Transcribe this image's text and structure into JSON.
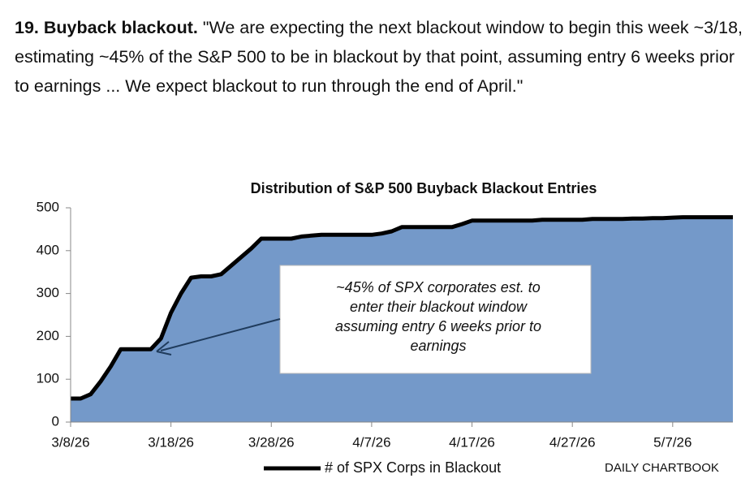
{
  "text": {
    "heading": "19. Buyback blackout.",
    "body": "\"We are expecting the next blackout window to begin this week ~3/18, estimating ~45% of the S&P 500 to be in blackout by that point, assuming entry 6 weeks prior to earnings ... We expect blackout to run through the end of April.\""
  },
  "chart_data": {
    "type": "area",
    "title": "Distribution of S&P 500 Buyback Blackout Entries",
    "x": [
      "3/8/26",
      "3/9/26",
      "3/10/26",
      "3/11/26",
      "3/12/26",
      "3/13/26",
      "3/14/26",
      "3/15/26",
      "3/16/26",
      "3/17/26",
      "3/18/26",
      "3/19/26",
      "3/20/26",
      "3/21/26",
      "3/22/26",
      "3/23/26",
      "3/24/26",
      "3/25/26",
      "3/26/26",
      "3/27/26",
      "3/28/26",
      "3/29/26",
      "3/30/26",
      "3/31/26",
      "4/1/26",
      "4/2/26",
      "4/3/26",
      "4/4/26",
      "4/5/26",
      "4/6/26",
      "4/7/26",
      "4/8/26",
      "4/9/26",
      "4/10/26",
      "4/11/26",
      "4/12/26",
      "4/13/26",
      "4/14/26",
      "4/15/26",
      "4/16/26",
      "4/17/26",
      "4/18/26",
      "4/19/26",
      "4/20/26",
      "4/21/26",
      "4/22/26",
      "4/23/26",
      "4/24/26",
      "4/25/26",
      "4/26/26",
      "4/27/26",
      "4/28/26",
      "4/29/26",
      "4/30/26",
      "5/1/26",
      "5/2/26",
      "5/3/26",
      "5/4/26",
      "5/5/26",
      "5/6/26",
      "5/7/26",
      "5/8/26",
      "5/9/26",
      "5/10/26",
      "5/11/26",
      "5/12/26",
      "5/13/26"
    ],
    "series": [
      {
        "name": "# of SPX Corps in Blackout",
        "color": "#000000",
        "fill": "#7499c9",
        "values": [
          55,
          55,
          65,
          95,
          130,
          170,
          170,
          170,
          170,
          195,
          255,
          300,
          337,
          340,
          340,
          345,
          365,
          385,
          405,
          428,
          428,
          428,
          428,
          433,
          435,
          437,
          437,
          437,
          437,
          437,
          437,
          440,
          445,
          455,
          455,
          455,
          455,
          455,
          455,
          462,
          470,
          470,
          470,
          470,
          470,
          470,
          470,
          472,
          472,
          472,
          472,
          472,
          474,
          474,
          474,
          474,
          475,
          475,
          476,
          476,
          477,
          478,
          478,
          478,
          478,
          478,
          478
        ]
      }
    ],
    "xlim": [
      "3/8/26",
      "5/13/26"
    ],
    "xticks": [
      "3/8/26",
      "3/18/26",
      "3/28/26",
      "4/7/26",
      "4/17/26",
      "4/27/26",
      "5/7/26"
    ],
    "ylim": [
      0,
      500
    ],
    "yticks": [
      0,
      100,
      200,
      300,
      400,
      500
    ],
    "annotation": [
      "~45% of SPX corporates est. to",
      "enter their blackout window",
      "assuming entry 6 weeks prior to",
      "earnings"
    ],
    "source": "DAILY CHARTBOOK"
  }
}
